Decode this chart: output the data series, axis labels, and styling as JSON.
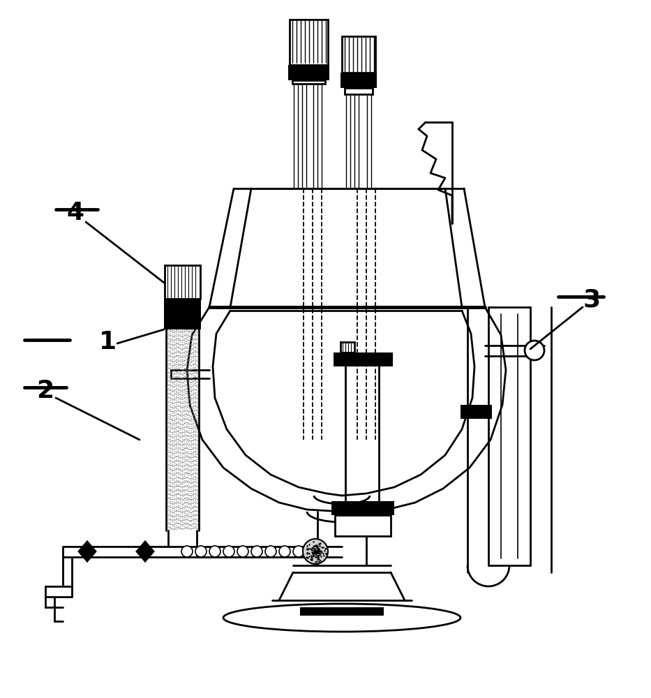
{
  "bg_color": "#ffffff",
  "line_color": "#000000",
  "lw_main": 2.0,
  "lw_thick": 3.5,
  "lw_thin": 1.2,
  "figsize": [
    9.33,
    10.0
  ],
  "dpi": 100,
  "label_fontsize": 26
}
